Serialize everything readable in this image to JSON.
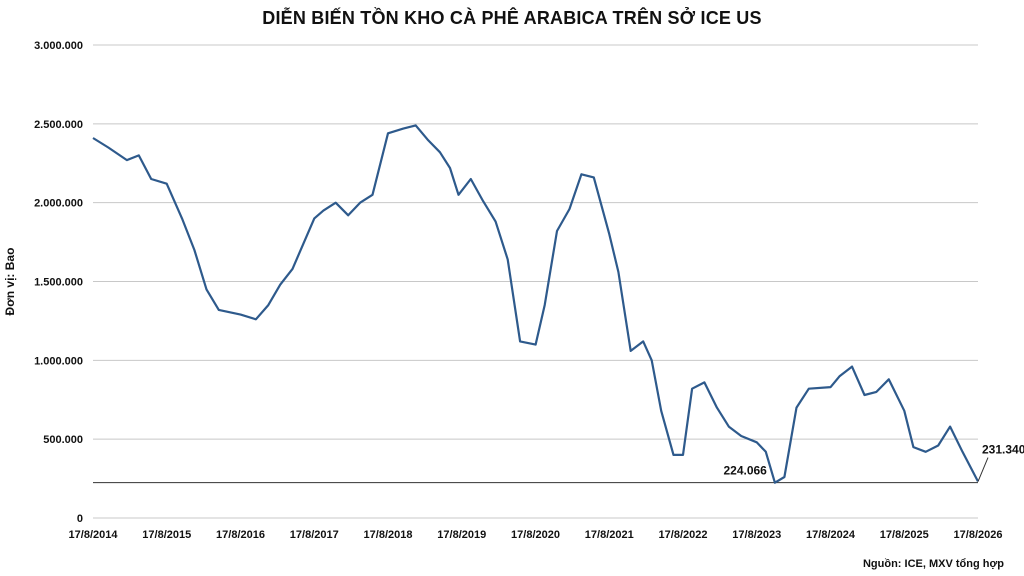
{
  "chart_data": {
    "type": "line",
    "title": "DIỄN BIẾN TỒN KHO CÀ PHÊ ARABICA TRÊN SỞ ICE US",
    "ylabel": "Đơn vị: Bao",
    "xlabel": "",
    "source": "Nguồn: ICE, MXV tổng hợp",
    "ylim": [
      0,
      3000000
    ],
    "xlim": [
      "2014-08-17",
      "2026-08-17"
    ],
    "yticks": [
      0,
      500000,
      1000000,
      1500000,
      2000000,
      2500000,
      3000000
    ],
    "ytick_labels": [
      "0",
      "500.000",
      "1.000.000",
      "1.500.000",
      "2.000.000",
      "2.500.000",
      "3.000.000"
    ],
    "xtick_labels": [
      "17/8/2014",
      "17/8/2015",
      "17/8/2016",
      "17/8/2017",
      "17/8/2018",
      "17/8/2019",
      "17/8/2020",
      "17/8/2021",
      "17/8/2022",
      "17/8/2023",
      "17/8/2024",
      "17/8/2025",
      "17/8/2026"
    ],
    "grid": true,
    "line_color": "#2e5a8c",
    "series": [
      {
        "x": [
          "2014-08-17",
          "2014-11-01",
          "2015-02-01",
          "2015-04-01",
          "2015-06-01",
          "2015-08-17",
          "2015-11-01",
          "2016-01-01",
          "2016-03-01",
          "2016-05-01",
          "2016-08-17",
          "2016-11-01",
          "2017-01-01",
          "2017-03-01",
          "2017-05-01",
          "2017-08-17",
          "2017-10-01",
          "2017-12-01",
          "2018-02-01",
          "2018-04-01",
          "2018-06-01",
          "2018-08-17",
          "2018-11-01",
          "2019-01-01",
          "2019-03-01",
          "2019-05-01",
          "2019-06-20",
          "2019-08-01",
          "2019-10-01",
          "2019-12-01",
          "2020-02-01",
          "2020-04-01",
          "2020-06-01",
          "2020-08-17",
          "2020-10-01",
          "2020-12-01",
          "2021-02-01",
          "2021-04-01",
          "2021-06-01",
          "2021-08-17",
          "2021-10-01",
          "2021-12-01",
          "2022-02-01",
          "2022-03-15",
          "2022-05-01",
          "2022-07-01",
          "2022-08-17",
          "2022-10-01",
          "2022-12-01",
          "2023-02-01",
          "2023-04-01",
          "2023-06-01",
          "2023-08-17",
          "2023-10-01",
          "2023-11-15",
          "2024-01-01",
          "2024-03-01",
          "2024-05-01",
          "2024-08-17",
          "2024-10-01",
          "2024-12-01",
          "2025-02-01",
          "2025-04-01",
          "2025-06-01",
          "2025-08-17",
          "2025-10-01",
          "2025-12-01",
          "2026-02-01",
          "2026-04-01",
          "2026-06-01",
          "2026-08-17"
        ],
        "y": [
          2410000,
          2350000,
          2270000,
          2300000,
          2150000,
          2120000,
          1900000,
          1700000,
          1450000,
          1320000,
          1290000,
          1260000,
          1350000,
          1480000,
          1580000,
          1900000,
          1950000,
          2000000,
          1920000,
          2000000,
          2050000,
          2440000,
          2470000,
          2490000,
          2400000,
          2320000,
          2220000,
          2050000,
          2150000,
          2010000,
          1880000,
          1640000,
          1120000,
          1100000,
          1350000,
          1820000,
          1960000,
          2180000,
          2160000,
          1800000,
          1560000,
          1060000,
          1120000,
          1000000,
          680000,
          400000,
          400000,
          820000,
          860000,
          700000,
          580000,
          520000,
          480000,
          420000,
          224066,
          260000,
          700000,
          820000,
          830000,
          900000,
          960000,
          780000,
          800000,
          880000,
          680000,
          450000,
          420000,
          460000,
          580000,
          420000,
          231340
        ]
      }
    ],
    "annotations": [
      {
        "label": "224.066",
        "x": "2023-11-15",
        "y": 224066
      },
      {
        "label": "231.340",
        "x": "2026-08-17",
        "y": 231340
      }
    ],
    "reference_line": {
      "y": 224066
    }
  }
}
